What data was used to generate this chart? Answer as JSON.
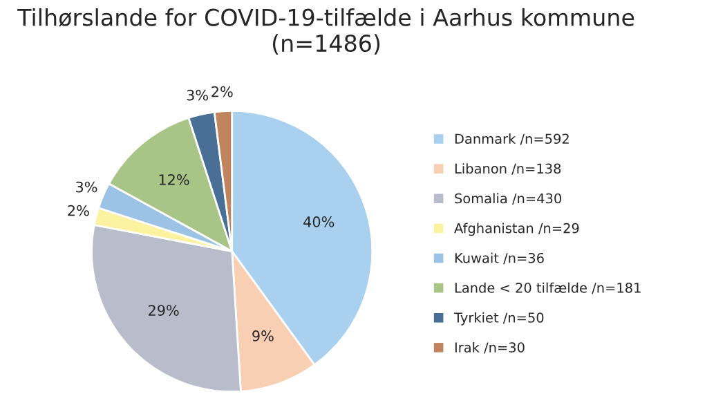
{
  "chart_data": {
    "type": "pie",
    "title": "Tilhørslande for COVID-19-tilfælde i Aarhus kommune\n(n=1486)",
    "categories": [
      "Danmark /n=592",
      "Libanon /n=138",
      "Somalia /n=430",
      "Afghanistan /n=29",
      "Kuwait /n=36",
      "Lande < 20 tilfælde /n=181",
      "Tyrkiet /n=50",
      "Irak /n=30"
    ],
    "values": [
      40,
      9,
      29,
      2,
      3,
      12,
      3,
      2
    ],
    "value_labels": [
      "40%",
      "9%",
      "29%",
      "2%",
      "3%",
      "12%",
      "3%",
      "2%"
    ],
    "colors": [
      "#a9d1ef",
      "#f9cfb3",
      "#b8bccb",
      "#fdf2a0",
      "#9cc3e6",
      "#a9c487",
      "#4a6f96",
      "#c0845e"
    ],
    "legend": "right"
  }
}
